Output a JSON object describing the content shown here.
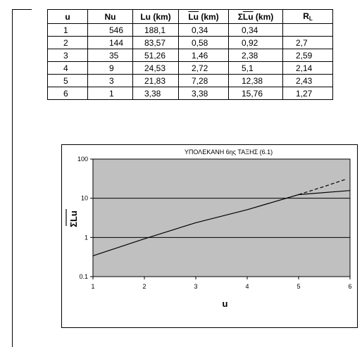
{
  "table": {
    "headers": [
      "u",
      "Nu",
      "Lu (km)",
      "Lu (km)",
      "ΣLu (km)",
      "R"
    ],
    "header_overline_part": [
      "",
      "",
      "",
      "Lu",
      "Lu",
      ""
    ],
    "rl_sub": "L",
    "rows": [
      [
        "1",
        "546",
        "188,1",
        "0,34",
        "0,34",
        ""
      ],
      [
        "2",
        "144",
        "83,57",
        "0,58",
        "0,92",
        "2,7"
      ],
      [
        "3",
        "35",
        "51,26",
        "1,46",
        "2,38",
        "2,59"
      ],
      [
        "4",
        "9",
        "24,53",
        "2,72",
        "5,1",
        "2,14"
      ],
      [
        "5",
        "3",
        "21,83",
        "7,28",
        "12,38",
        "2,43"
      ],
      [
        "6",
        "1",
        "3,38",
        "3,38",
        "15,76",
        "1,27"
      ]
    ]
  },
  "chart_data": {
    "type": "line",
    "title": "ΥΠΟΛΕΚΑΝΗ 6ης ΤΑΞΗΣ (6.1)",
    "xlabel": "u",
    "ylabel": "ΣLu",
    "yscale": "log",
    "xlim": [
      1,
      6
    ],
    "ylim": [
      0.1,
      100
    ],
    "x_ticks": [
      "1",
      "2",
      "3",
      "4",
      "5",
      "6"
    ],
    "y_ticks": [
      "0.1",
      "1",
      "10",
      "100"
    ],
    "grid": "horizontal",
    "plot_background": "#c0c0c0",
    "series": [
      {
        "style": "solid",
        "x": [
          1,
          2,
          3,
          4,
          5,
          6
        ],
        "y": [
          0.34,
          0.92,
          2.38,
          5.1,
          12.38,
          15.76
        ]
      },
      {
        "style": "dashed",
        "x": [
          5,
          5.5,
          5.9
        ],
        "y": [
          12.38,
          20,
          30
        ]
      }
    ]
  }
}
